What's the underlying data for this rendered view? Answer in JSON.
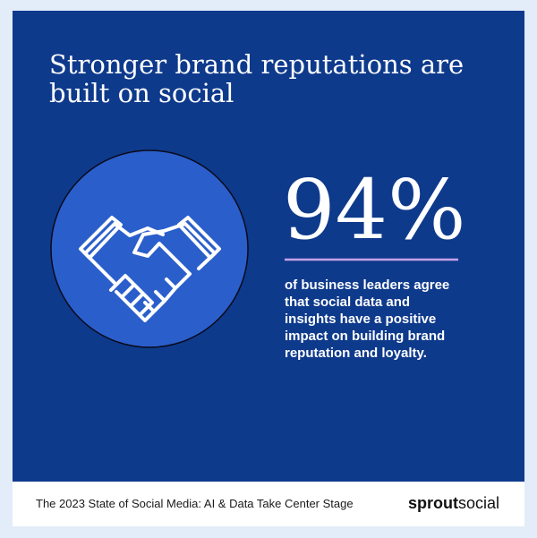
{
  "header": {
    "title_lines": [
      "Stronger brand reputations are",
      "built on social"
    ]
  },
  "stat": {
    "value": "94%",
    "description_lines": [
      "of business leaders agree",
      "that social data and",
      "insights have a positive",
      "impact on building brand",
      "reputation and loyalty."
    ]
  },
  "footer": {
    "caption": "The 2023 State of Social Media: AI & Data Take Center Stage",
    "logo": {
      "bold": "sprout",
      "light": "social"
    }
  }
}
